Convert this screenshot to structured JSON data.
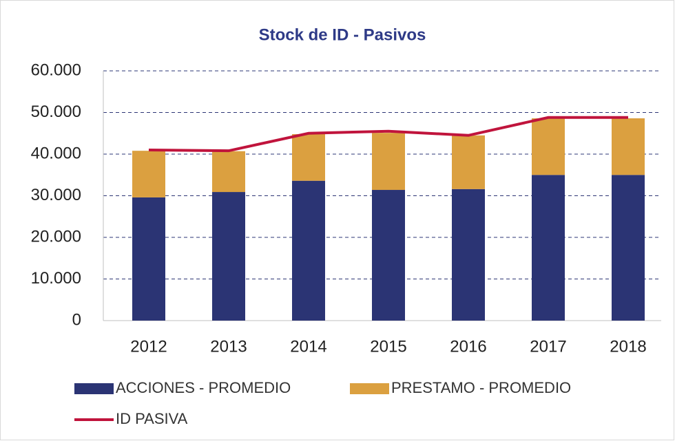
{
  "chart_data": {
    "type": "bar",
    "stacked": true,
    "title": "Stock de ID - Pasivos",
    "categories": [
      "2012",
      "2013",
      "2014",
      "2015",
      "2016",
      "2017",
      "2018"
    ],
    "series": [
      {
        "name": "ACCIONES - PROMEDIO",
        "type": "bar",
        "color": "#2b3474",
        "values": [
          29600,
          30900,
          33600,
          31400,
          31600,
          35000,
          35000
        ]
      },
      {
        "name": "PRESTAMO - PROMEDIO",
        "type": "bar",
        "color": "#dba040",
        "values": [
          11200,
          9800,
          11200,
          13700,
          12900,
          13600,
          13600
        ]
      },
      {
        "name": "ID PASIVA",
        "type": "line",
        "color": "#c0143c",
        "values": [
          41000,
          40800,
          45000,
          45500,
          44500,
          48800,
          48800
        ]
      }
    ],
    "ylim": [
      0,
      60000
    ],
    "yticks": [
      0,
      {
        "value": 10000,
        "label": "10.000"
      },
      {
        "value": 20000,
        "label": "20.000"
      },
      {
        "value": 30000,
        "label": "30.000"
      },
      {
        "value": 40000,
        "label": "40.000"
      },
      {
        "value": 50000,
        "label": "50.000"
      },
      {
        "value": 60000,
        "label": "60.000"
      }
    ],
    "grid": true,
    "legend": "bottom"
  }
}
